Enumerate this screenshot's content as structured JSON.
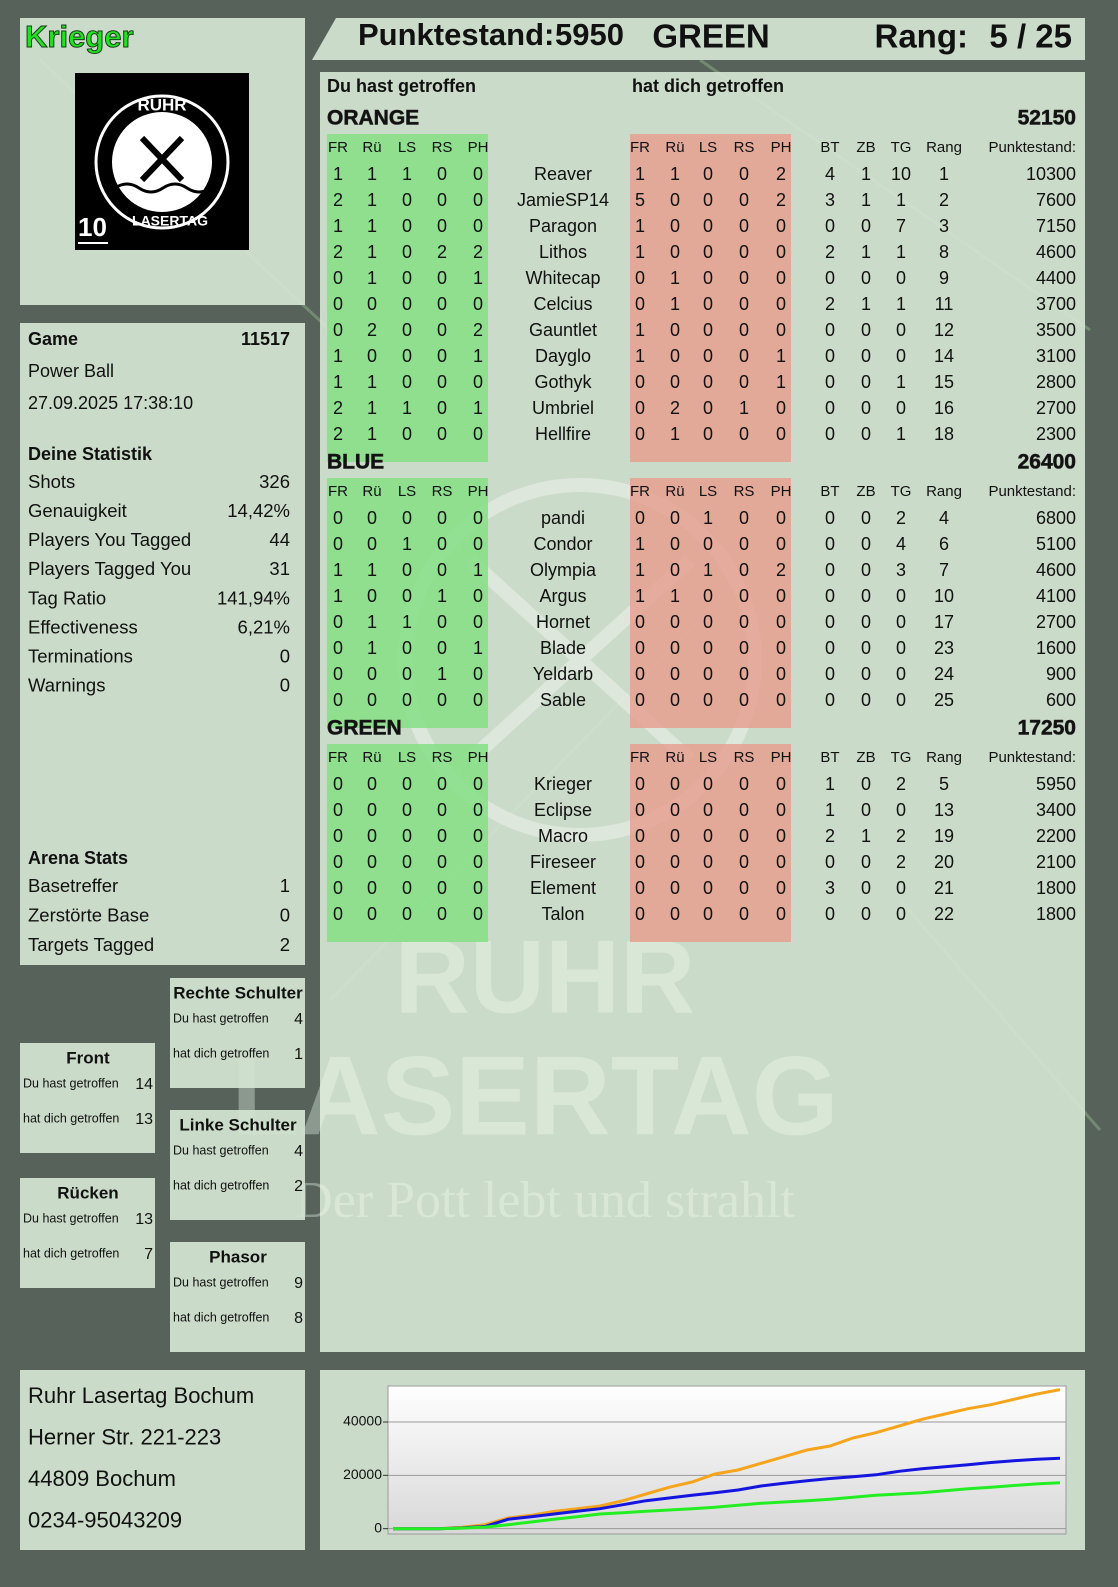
{
  "header": {
    "player": "Krieger",
    "score_label": "Punktestand:",
    "score": 5950,
    "team": "GREEN",
    "rank_label": "Rang:",
    "rank": "5 / 25"
  },
  "logo": {
    "top": "RUHR",
    "bottom": "LASERTAG",
    "number": 10
  },
  "game": {
    "label": "Game",
    "id": 11517,
    "mode": "Power Ball",
    "datetime": "27.09.2025 17:38:10"
  },
  "stats": {
    "title": "Deine Statistik",
    "rows": [
      [
        "Shots",
        326
      ],
      [
        "Genauigkeit",
        "14,42%"
      ],
      [
        "Players You Tagged",
        44
      ],
      [
        "Players Tagged You",
        31
      ],
      [
        "Tag Ratio",
        "141,94%"
      ],
      [
        "Effectiveness",
        "6,21%"
      ],
      [
        "Terminations",
        0
      ],
      [
        "Warnings",
        0
      ]
    ]
  },
  "arena": {
    "title": "Arena Stats",
    "rows": [
      [
        "Basetreffer",
        1
      ],
      [
        "Zerstörte Base",
        0
      ],
      [
        "Targets Tagged",
        2
      ]
    ]
  },
  "zones": {
    "you_hit_label": "Du hast getroffen",
    "hit_you_label": "hat dich getroffen",
    "items": [
      {
        "name": "Rechte Schulter",
        "you_hit": 4,
        "hit_you": 1
      },
      {
        "name": "Front",
        "you_hit": 14,
        "hit_you": 13
      },
      {
        "name": "Linke Schulter",
        "you_hit": 4,
        "hit_you": 2
      },
      {
        "name": "Rücken",
        "you_hit": 13,
        "hit_you": 7
      },
      {
        "name": "Phasor",
        "you_hit": 9,
        "hit_you": 8
      }
    ]
  },
  "address": [
    "Ruhr Lasertag Bochum",
    "Herner Str. 221-223",
    "44809 Bochum",
    "0234-95043209"
  ],
  "table": {
    "you_hit_title": "Du hast getroffen",
    "hit_you_title": "hat dich getroffen",
    "hit_columns": [
      "FR",
      "Rü",
      "LS",
      "RS",
      "PH"
    ],
    "stat_columns": [
      "BT",
      "ZB",
      "TG",
      "Rang",
      "Punktestand:"
    ],
    "teams": [
      {
        "name": "ORANGE",
        "color": "#f5a41c",
        "total": 52150,
        "players": [
          {
            "name": "Reaver",
            "you_hit": [
              1,
              1,
              1,
              0,
              0
            ],
            "hit_you": [
              1,
              1,
              0,
              0,
              2
            ],
            "stats": [
              4,
              1,
              10,
              1,
              10300
            ]
          },
          {
            "name": "JamieSP14",
            "you_hit": [
              2,
              1,
              0,
              0,
              0
            ],
            "hit_you": [
              5,
              0,
              0,
              0,
              2
            ],
            "stats": [
              3,
              1,
              1,
              2,
              7600
            ]
          },
          {
            "name": "Paragon",
            "you_hit": [
              1,
              1,
              0,
              0,
              0
            ],
            "hit_you": [
              1,
              0,
              0,
              0,
              0
            ],
            "stats": [
              0,
              0,
              7,
              3,
              7150
            ]
          },
          {
            "name": "Lithos",
            "you_hit": [
              2,
              1,
              0,
              2,
              2
            ],
            "hit_you": [
              1,
              0,
              0,
              0,
              0
            ],
            "stats": [
              2,
              1,
              1,
              8,
              4600
            ]
          },
          {
            "name": "Whitecap",
            "you_hit": [
              0,
              1,
              0,
              0,
              1
            ],
            "hit_you": [
              0,
              1,
              0,
              0,
              0
            ],
            "stats": [
              0,
              0,
              0,
              9,
              4400
            ]
          },
          {
            "name": "Celcius",
            "you_hit": [
              0,
              0,
              0,
              0,
              0
            ],
            "hit_you": [
              0,
              1,
              0,
              0,
              0
            ],
            "stats": [
              2,
              1,
              1,
              11,
              3700
            ]
          },
          {
            "name": "Gauntlet",
            "you_hit": [
              0,
              2,
              0,
              0,
              2
            ],
            "hit_you": [
              1,
              0,
              0,
              0,
              0
            ],
            "stats": [
              0,
              0,
              0,
              12,
              3500
            ]
          },
          {
            "name": "Dayglo",
            "you_hit": [
              1,
              0,
              0,
              0,
              1
            ],
            "hit_you": [
              1,
              0,
              0,
              0,
              1
            ],
            "stats": [
              0,
              0,
              0,
              14,
              3100
            ]
          },
          {
            "name": "Gothyk",
            "you_hit": [
              1,
              1,
              0,
              0,
              0
            ],
            "hit_you": [
              0,
              0,
              0,
              0,
              1
            ],
            "stats": [
              0,
              0,
              1,
              15,
              2800
            ]
          },
          {
            "name": "Umbriel",
            "you_hit": [
              2,
              1,
              1,
              0,
              1
            ],
            "hit_you": [
              0,
              2,
              0,
              1,
              0
            ],
            "stats": [
              0,
              0,
              0,
              16,
              2700
            ]
          },
          {
            "name": "Hellfire",
            "you_hit": [
              2,
              1,
              0,
              0,
              0
            ],
            "hit_you": [
              0,
              1,
              0,
              0,
              0
            ],
            "stats": [
              0,
              0,
              1,
              18,
              2300
            ]
          }
        ]
      },
      {
        "name": "BLUE",
        "color": "#1818d8",
        "total": 26400,
        "players": [
          {
            "name": "pandi",
            "you_hit": [
              0,
              0,
              0,
              0,
              0
            ],
            "hit_you": [
              0,
              0,
              1,
              0,
              0
            ],
            "stats": [
              0,
              0,
              2,
              4,
              6800
            ]
          },
          {
            "name": "Condor",
            "you_hit": [
              0,
              0,
              1,
              0,
              0
            ],
            "hit_you": [
              1,
              0,
              0,
              0,
              0
            ],
            "stats": [
              0,
              0,
              4,
              6,
              5100
            ]
          },
          {
            "name": "Olympia",
            "you_hit": [
              1,
              1,
              0,
              0,
              1
            ],
            "hit_you": [
              1,
              0,
              1,
              0,
              2
            ],
            "stats": [
              0,
              0,
              3,
              7,
              4600
            ]
          },
          {
            "name": "Argus",
            "you_hit": [
              1,
              0,
              0,
              1,
              0
            ],
            "hit_you": [
              1,
              1,
              0,
              0,
              0
            ],
            "stats": [
              0,
              0,
              0,
              10,
              4100
            ]
          },
          {
            "name": "Hornet",
            "you_hit": [
              0,
              1,
              1,
              0,
              0
            ],
            "hit_you": [
              0,
              0,
              0,
              0,
              0
            ],
            "stats": [
              0,
              0,
              0,
              17,
              2700
            ]
          },
          {
            "name": "Blade",
            "you_hit": [
              0,
              1,
              0,
              0,
              1
            ],
            "hit_you": [
              0,
              0,
              0,
              0,
              0
            ],
            "stats": [
              0,
              0,
              0,
              23,
              1600
            ]
          },
          {
            "name": "Yeldarb",
            "you_hit": [
              0,
              0,
              0,
              1,
              0
            ],
            "hit_you": [
              0,
              0,
              0,
              0,
              0
            ],
            "stats": [
              0,
              0,
              0,
              24,
              900
            ]
          },
          {
            "name": "Sable",
            "you_hit": [
              0,
              0,
              0,
              0,
              0
            ],
            "hit_you": [
              0,
              0,
              0,
              0,
              0
            ],
            "stats": [
              0,
              0,
              0,
              25,
              600
            ]
          }
        ]
      },
      {
        "name": "GREEN",
        "color": "#22dd22",
        "total": 17250,
        "players": [
          {
            "name": "Krieger",
            "you_hit": [
              0,
              0,
              0,
              0,
              0
            ],
            "hit_you": [
              0,
              0,
              0,
              0,
              0
            ],
            "stats": [
              1,
              0,
              2,
              5,
              5950
            ]
          },
          {
            "name": "Eclipse",
            "you_hit": [
              0,
              0,
              0,
              0,
              0
            ],
            "hit_you": [
              0,
              0,
              0,
              0,
              0
            ],
            "stats": [
              1,
              0,
              0,
              13,
              3400
            ]
          },
          {
            "name": "Macro",
            "you_hit": [
              0,
              0,
              0,
              0,
              0
            ],
            "hit_you": [
              0,
              0,
              0,
              0,
              0
            ],
            "stats": [
              2,
              1,
              2,
              19,
              2200
            ]
          },
          {
            "name": "Fireseer",
            "you_hit": [
              0,
              0,
              0,
              0,
              0
            ],
            "hit_you": [
              0,
              0,
              0,
              0,
              0
            ],
            "stats": [
              0,
              0,
              2,
              20,
              2100
            ]
          },
          {
            "name": "Element",
            "you_hit": [
              0,
              0,
              0,
              0,
              0
            ],
            "hit_you": [
              0,
              0,
              0,
              0,
              0
            ],
            "stats": [
              3,
              0,
              0,
              21,
              1800
            ]
          },
          {
            "name": "Talon",
            "you_hit": [
              0,
              0,
              0,
              0,
              0
            ],
            "hit_you": [
              0,
              0,
              0,
              0,
              0
            ],
            "stats": [
              0,
              0,
              0,
              22,
              1800
            ]
          }
        ]
      }
    ]
  },
  "watermark": {
    "line1": "RUHR",
    "line2": "LASERTAG",
    "slogan": "Der Pott lebt und strahlt"
  },
  "chart_data": {
    "type": "line",
    "ylim": [
      -2000,
      53500
    ],
    "yticks": [
      0,
      20000,
      40000
    ],
    "grid": true,
    "series": [
      {
        "name": "ORANGE",
        "color": "#f5a41c",
        "values": [
          0,
          0,
          0,
          500,
          1500,
          4000,
          5000,
          6500,
          7500,
          8500,
          10500,
          13000,
          15500,
          17500,
          20500,
          22000,
          24500,
          27000,
          29500,
          31000,
          34000,
          36000,
          38500,
          41000,
          43000,
          45000,
          46500,
          48500,
          50500,
          52150
        ]
      },
      {
        "name": "BLUE",
        "color": "#1515e0",
        "values": [
          0,
          0,
          0,
          300,
          800,
          3500,
          4500,
          5500,
          6500,
          7500,
          9000,
          10500,
          11500,
          12500,
          13500,
          14500,
          16000,
          17000,
          18000,
          18800,
          19500,
          20200,
          21500,
          22500,
          23200,
          24000,
          24800,
          25500,
          26000,
          26400
        ]
      },
      {
        "name": "GREEN",
        "color": "#22ee22",
        "values": [
          0,
          0,
          0,
          200,
          600,
          1500,
          2500,
          3500,
          4500,
          5500,
          6000,
          6500,
          7000,
          7500,
          8000,
          8800,
          9500,
          10000,
          10500,
          11000,
          11800,
          12500,
          13000,
          13500,
          14200,
          15000,
          15500,
          16200,
          16800,
          17250
        ]
      }
    ]
  }
}
